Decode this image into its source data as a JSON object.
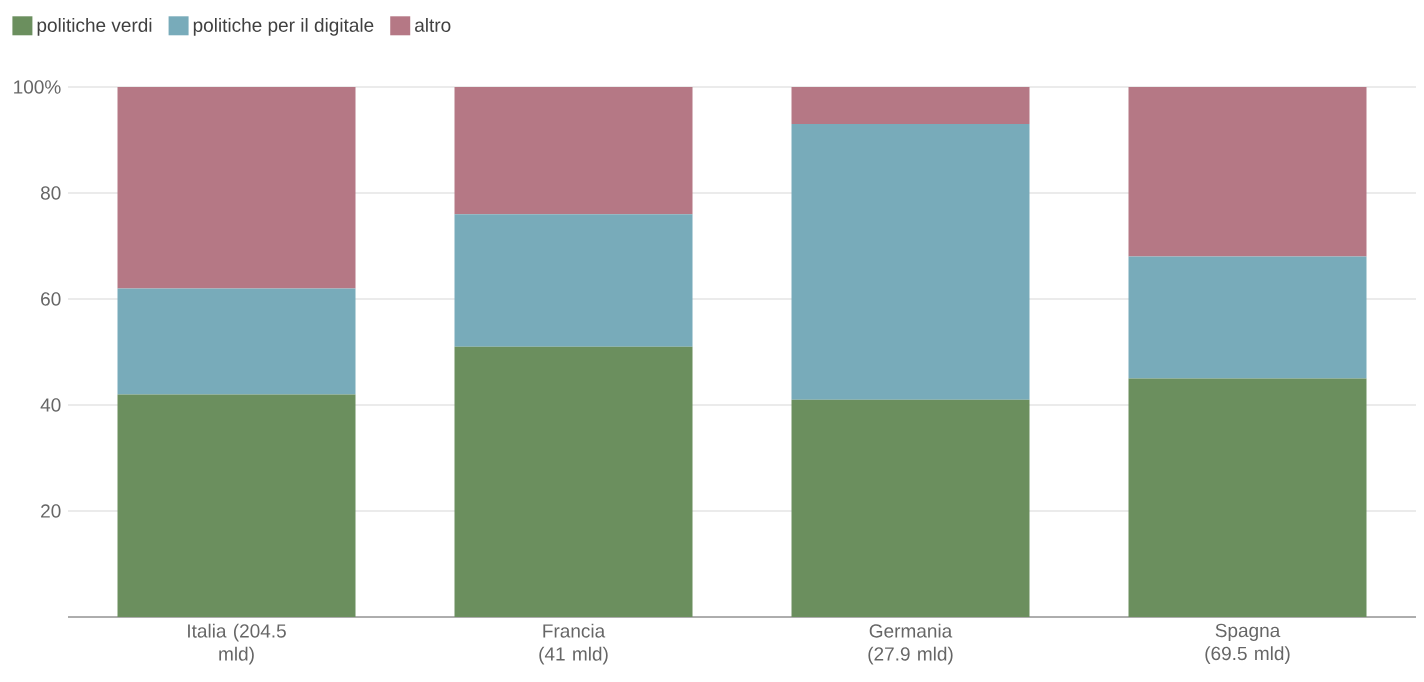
{
  "chart_data": {
    "type": "bar",
    "stacked": true,
    "categories": [
      "Italia (204.5 mld)",
      "Francia (41 mld)",
      "Germania (27.9 mld)",
      "Spagna (69.5 mld)"
    ],
    "series": [
      {
        "name": "politiche verdi",
        "color": "#6b8f5e",
        "values": [
          42,
          51,
          41,
          45
        ]
      },
      {
        "name": "politiche per il digitale",
        "color": "#78abba",
        "values": [
          20,
          25,
          52,
          23
        ]
      },
      {
        "name": "altro",
        "color": "#b57885",
        "values": [
          38,
          24,
          7,
          32
        ]
      }
    ],
    "ylim": [
      0,
      100
    ],
    "yticks": [
      20,
      40,
      60,
      80,
      {
        "value": 100,
        "label": "100%"
      }
    ],
    "grid": "y",
    "legend": "top left"
  }
}
